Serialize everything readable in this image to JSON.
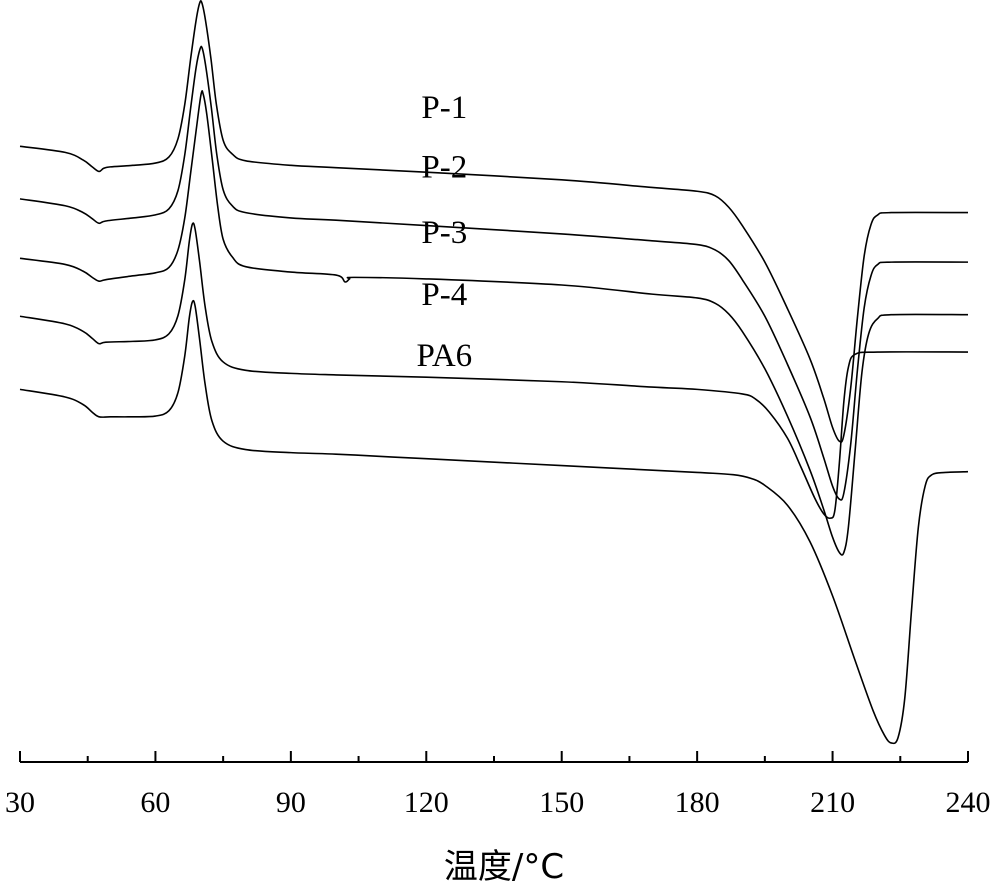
{
  "chart_data": {
    "type": "line",
    "title": "",
    "xlabel": "温度/°C",
    "ylabel": "",
    "xlim": [
      30,
      240
    ],
    "ylim": [
      0,
      100
    ],
    "x_ticks": [
      30,
      60,
      90,
      120,
      150,
      180,
      210,
      240
    ],
    "legend": "inline labels",
    "grid": false,
    "series": [
      {
        "name": "P-1",
        "points": [
          [
            30,
            80.8
          ],
          [
            40,
            80.0
          ],
          [
            44,
            79.0
          ],
          [
            46,
            78.1
          ],
          [
            47.5,
            77.5
          ],
          [
            48.5,
            77.9
          ],
          [
            50,
            78.1
          ],
          [
            55,
            78.3
          ],
          [
            60,
            78.6
          ],
          [
            63,
            79.4
          ],
          [
            65,
            81.8
          ],
          [
            66.5,
            86.3
          ],
          [
            67.8,
            92.3
          ],
          [
            69,
            97.3
          ],
          [
            69.8,
            99.6
          ],
          [
            70.3,
            99.6
          ],
          [
            71.1,
            97.3
          ],
          [
            72.3,
            92.3
          ],
          [
            73.5,
            86.3
          ],
          [
            75,
            81.6
          ],
          [
            77,
            79.8
          ],
          [
            80,
            78.9
          ],
          [
            90,
            78.3
          ],
          [
            100,
            78.0
          ],
          [
            120,
            77.4
          ],
          [
            150,
            76.4
          ],
          [
            170,
            75.4
          ],
          [
            180,
            74.9
          ],
          [
            184,
            74.3
          ],
          [
            187,
            72.8
          ],
          [
            190,
            70.4
          ],
          [
            195,
            65.6
          ],
          [
            200,
            59.5
          ],
          [
            205,
            52.9
          ],
          [
            208,
            47.8
          ],
          [
            210,
            43.9
          ],
          [
            211.5,
            42.1
          ],
          [
            212.5,
            42.9
          ],
          [
            214,
            49.0
          ],
          [
            215.5,
            58.3
          ],
          [
            217,
            66.4
          ],
          [
            218.5,
            70.5
          ],
          [
            220,
            71.8
          ],
          [
            223,
            72.1
          ],
          [
            240,
            72.1
          ]
        ]
      },
      {
        "name": "P-2",
        "points": [
          [
            30,
            73.9
          ],
          [
            40,
            73.0
          ],
          [
            44,
            72.1
          ],
          [
            46,
            71.3
          ],
          [
            47.5,
            70.7
          ],
          [
            49,
            71.0
          ],
          [
            55,
            71.4
          ],
          [
            60,
            71.8
          ],
          [
            63,
            72.6
          ],
          [
            65,
            75.0
          ],
          [
            66.5,
            79.7
          ],
          [
            67.8,
            85.8
          ],
          [
            69,
            91.1
          ],
          [
            69.9,
            93.6
          ],
          [
            70.4,
            93.6
          ],
          [
            71.2,
            91.1
          ],
          [
            72.4,
            85.8
          ],
          [
            73.6,
            79.7
          ],
          [
            75,
            75.1
          ],
          [
            77,
            73.0
          ],
          [
            80,
            72.1
          ],
          [
            90,
            71.4
          ],
          [
            100,
            71.1
          ],
          [
            120,
            70.4
          ],
          [
            150,
            69.3
          ],
          [
            170,
            68.4
          ],
          [
            180,
            67.9
          ],
          [
            184,
            67.2
          ],
          [
            187,
            65.8
          ],
          [
            190,
            63.3
          ],
          [
            195,
            58.5
          ],
          [
            200,
            52.2
          ],
          [
            205,
            45.3
          ],
          [
            208,
            40.0
          ],
          [
            210,
            36.2
          ],
          [
            211.5,
            34.5
          ],
          [
            212.5,
            35.3
          ],
          [
            214,
            41.6
          ],
          [
            215.5,
            51.4
          ],
          [
            217,
            59.6
          ],
          [
            218.5,
            63.8
          ],
          [
            220,
            65.3
          ],
          [
            223,
            65.6
          ],
          [
            240,
            65.6
          ]
        ]
      },
      {
        "name": "P-3",
        "points": [
          [
            30,
            66.1
          ],
          [
            40,
            65.3
          ],
          [
            44,
            64.4
          ],
          [
            46,
            63.6
          ],
          [
            47.5,
            63.1
          ],
          [
            49,
            63.3
          ],
          [
            55,
            63.8
          ],
          [
            60,
            64.2
          ],
          [
            63,
            64.9
          ],
          [
            65,
            67.2
          ],
          [
            66.5,
            71.4
          ],
          [
            67.8,
            77.3
          ],
          [
            69,
            82.8
          ],
          [
            70.1,
            87.6
          ],
          [
            70.6,
            87.6
          ],
          [
            71.4,
            84.9
          ],
          [
            72.6,
            79.0
          ],
          [
            73.8,
            72.9
          ],
          [
            75,
            68.6
          ],
          [
            77,
            66.3
          ],
          [
            80,
            65.0
          ],
          [
            90,
            64.3
          ],
          [
            100,
            63.9
          ],
          [
            102,
            63.0
          ],
          [
            103,
            63.4
          ],
          [
            104,
            63.6
          ],
          [
            120,
            63.4
          ],
          [
            150,
            62.6
          ],
          [
            170,
            61.4
          ],
          [
            180,
            60.9
          ],
          [
            184,
            60.2
          ],
          [
            187,
            58.8
          ],
          [
            190,
            56.5
          ],
          [
            195,
            51.6
          ],
          [
            200,
            45.4
          ],
          [
            205,
            38.3
          ],
          [
            208,
            33.2
          ],
          [
            210,
            29.5
          ],
          [
            211.5,
            27.5
          ],
          [
            212.5,
            27.5
          ],
          [
            213.5,
            30.8
          ],
          [
            215,
            40.9
          ],
          [
            216.5,
            51.1
          ],
          [
            218,
            56.2
          ],
          [
            220,
            58.2
          ],
          [
            223,
            58.7
          ],
          [
            240,
            58.7
          ]
        ]
      },
      {
        "name": "P-4",
        "points": [
          [
            30,
            58.5
          ],
          [
            40,
            57.5
          ],
          [
            44,
            56.5
          ],
          [
            46,
            55.6
          ],
          [
            47.5,
            54.9
          ],
          [
            49,
            55.1
          ],
          [
            55,
            55.2
          ],
          [
            60,
            55.4
          ],
          [
            63,
            56.2
          ],
          [
            65,
            58.6
          ],
          [
            66.5,
            63.3
          ],
          [
            67.5,
            68.3
          ],
          [
            68.2,
            70.6
          ],
          [
            68.8,
            69.9
          ],
          [
            69.8,
            65.6
          ],
          [
            71,
            59.8
          ],
          [
            72.5,
            55.2
          ],
          [
            75,
            52.5
          ],
          [
            80,
            51.4
          ],
          [
            90,
            51.0
          ],
          [
            100,
            50.8
          ],
          [
            120,
            50.5
          ],
          [
            150,
            49.9
          ],
          [
            170,
            49.2
          ],
          [
            180,
            48.9
          ],
          [
            190,
            48.3
          ],
          [
            193,
            47.6
          ],
          [
            196,
            45.9
          ],
          [
            200,
            42.5
          ],
          [
            203,
            38.7
          ],
          [
            206,
            34.7
          ],
          [
            208,
            32.6
          ],
          [
            209.5,
            32.0
          ],
          [
            210.5,
            33.0
          ],
          [
            211.5,
            39.2
          ],
          [
            212.5,
            47.3
          ],
          [
            213.5,
            51.8
          ],
          [
            215,
            53.5
          ],
          [
            220,
            53.8
          ],
          [
            240,
            53.8
          ]
        ]
      },
      {
        "name": "PA6",
        "points": [
          [
            30,
            48.9
          ],
          [
            40,
            47.9
          ],
          [
            44,
            46.9
          ],
          [
            46,
            45.9
          ],
          [
            47.5,
            45.3
          ],
          [
            50,
            45.3
          ],
          [
            55,
            45.3
          ],
          [
            60,
            45.4
          ],
          [
            63,
            46.1
          ],
          [
            65,
            48.5
          ],
          [
            66.5,
            53.3
          ],
          [
            67.5,
            58.3
          ],
          [
            68.2,
            60.4
          ],
          [
            68.8,
            59.8
          ],
          [
            69.8,
            55.4
          ],
          [
            71,
            49.6
          ],
          [
            72.5,
            44.8
          ],
          [
            75,
            42.1
          ],
          [
            80,
            41.0
          ],
          [
            90,
            40.6
          ],
          [
            100,
            40.4
          ],
          [
            110,
            40.1
          ],
          [
            120,
            39.8
          ],
          [
            150,
            38.9
          ],
          [
            180,
            38.0
          ],
          [
            188,
            37.7
          ],
          [
            192,
            37.2
          ],
          [
            195,
            36.3
          ],
          [
            200,
            33.7
          ],
          [
            205,
            28.9
          ],
          [
            210,
            21.8
          ],
          [
            215,
            13.3
          ],
          [
            219,
            6.7
          ],
          [
            221.5,
            3.5
          ],
          [
            223,
            2.5
          ],
          [
            224.5,
            3.2
          ],
          [
            226,
            8.4
          ],
          [
            227.5,
            20.0
          ],
          [
            229,
            30.8
          ],
          [
            230.5,
            36.2
          ],
          [
            232,
            37.7
          ],
          [
            235,
            38.0
          ],
          [
            240,
            38.1
          ]
        ]
      }
    ],
    "annotations": [
      {
        "text": "P-1",
        "x": 124,
        "y": 84.5
      },
      {
        "text": "P-2",
        "x": 124,
        "y": 76.7
      },
      {
        "text": "P-3",
        "x": 124,
        "y": 68.1
      },
      {
        "text": "P-4",
        "x": 124,
        "y": 60.0
      },
      {
        "text": "PA6",
        "x": 124,
        "y": 52.0
      }
    ]
  }
}
